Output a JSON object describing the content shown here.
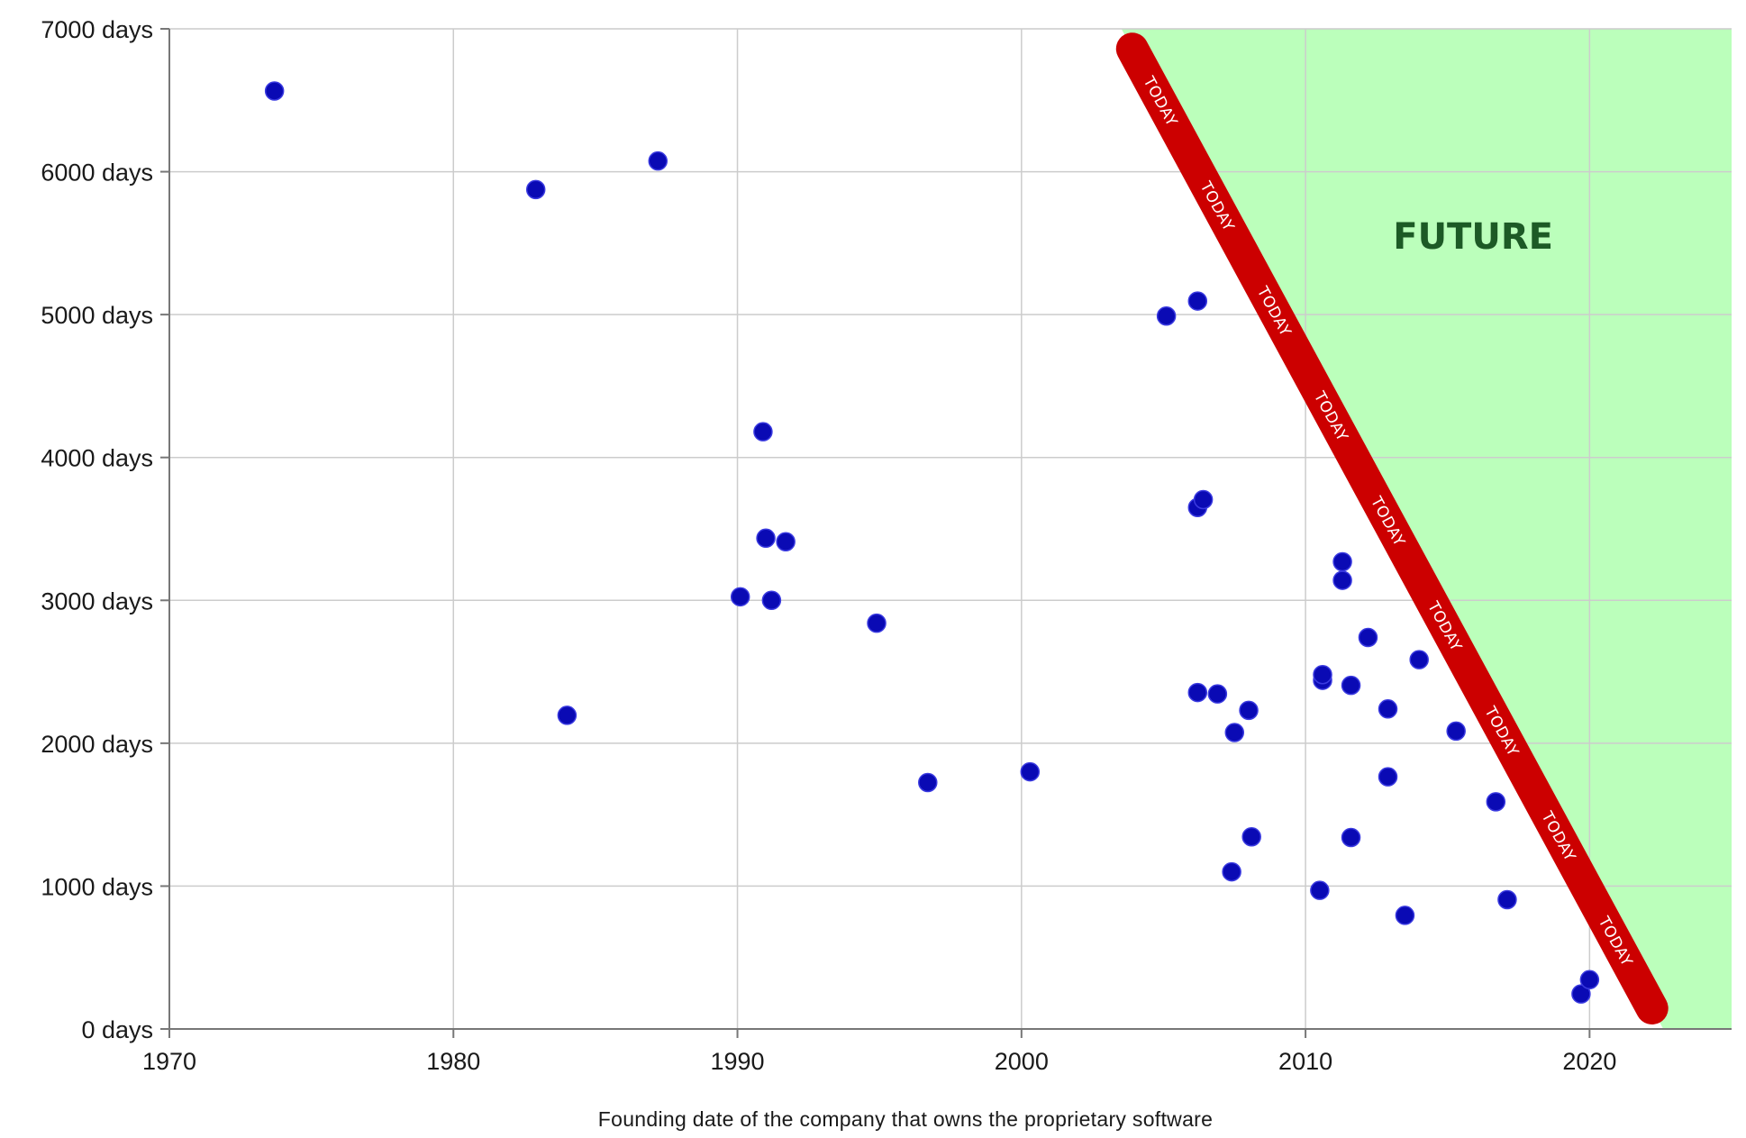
{
  "chart_data": {
    "type": "scatter",
    "title": "",
    "xlabel": "Founding date of the company that owns the proprietary software",
    "ylabel": "",
    "xlim": [
      1970,
      2025
    ],
    "ylim": [
      0,
      7000
    ],
    "grid": true,
    "x_ticks": [
      1970,
      1980,
      1990,
      2000,
      2010,
      2020
    ],
    "x_tick_labels": [
      "1970",
      "1980",
      "1990",
      "2000",
      "2010",
      "2020"
    ],
    "y_ticks": [
      0,
      1000,
      2000,
      3000,
      4000,
      5000,
      6000,
      7000
    ],
    "y_tick_labels": [
      "0 days",
      "1000 days",
      "2000 days",
      "3000 days",
      "4000 days",
      "5000 days",
      "6000 days",
      "7000 days"
    ],
    "point_color": "#0a0ab4",
    "future_region_color": "#bbffbb",
    "today_line_color": "#cc0000",
    "future_label": "FUTURE",
    "today_label": "TODAY",
    "today_line": [
      {
        "x": 2003.9,
        "y": 6860
      },
      {
        "x": 2022.2,
        "y": 145
      }
    ],
    "today_label_count": 9,
    "points": [
      {
        "x": 1973.7,
        "y": 6565
      },
      {
        "x": 1982.9,
        "y": 5875
      },
      {
        "x": 1984.0,
        "y": 2195
      },
      {
        "x": 1987.2,
        "y": 6075
      },
      {
        "x": 1990.1,
        "y": 3025
      },
      {
        "x": 1990.9,
        "y": 4180
      },
      {
        "x": 1991.0,
        "y": 3435
      },
      {
        "x": 1991.2,
        "y": 3000
      },
      {
        "x": 1991.7,
        "y": 3410
      },
      {
        "x": 1994.9,
        "y": 2840
      },
      {
        "x": 1996.7,
        "y": 1725
      },
      {
        "x": 2000.3,
        "y": 1800
      },
      {
        "x": 2005.1,
        "y": 4990
      },
      {
        "x": 2006.2,
        "y": 5095
      },
      {
        "x": 2006.2,
        "y": 3650
      },
      {
        "x": 2006.4,
        "y": 3705
      },
      {
        "x": 2006.2,
        "y": 2355
      },
      {
        "x": 2006.9,
        "y": 2345
      },
      {
        "x": 2007.4,
        "y": 1100
      },
      {
        "x": 2007.5,
        "y": 2075
      },
      {
        "x": 2008.0,
        "y": 2230
      },
      {
        "x": 2008.1,
        "y": 1345
      },
      {
        "x": 2010.5,
        "y": 970
      },
      {
        "x": 2010.6,
        "y": 2440
      },
      {
        "x": 2010.6,
        "y": 2480
      },
      {
        "x": 2011.3,
        "y": 3270
      },
      {
        "x": 2011.3,
        "y": 3140
      },
      {
        "x": 2011.6,
        "y": 2405
      },
      {
        "x": 2011.6,
        "y": 1340
      },
      {
        "x": 2012.2,
        "y": 2740
      },
      {
        "x": 2012.9,
        "y": 2240
      },
      {
        "x": 2012.9,
        "y": 1765
      },
      {
        "x": 2013.5,
        "y": 795
      },
      {
        "x": 2014.0,
        "y": 2585
      },
      {
        "x": 2015.3,
        "y": 2085
      },
      {
        "x": 2016.7,
        "y": 1590
      },
      {
        "x": 2017.1,
        "y": 905
      },
      {
        "x": 2019.7,
        "y": 245
      },
      {
        "x": 2020.0,
        "y": 345
      }
    ]
  }
}
